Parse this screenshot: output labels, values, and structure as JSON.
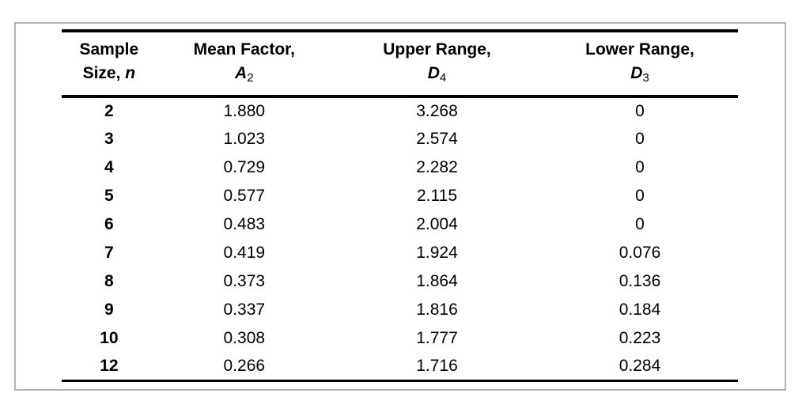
{
  "page": {
    "background_color": "#ffffff",
    "frame_border_color": "#b3b3b3",
    "rule_color": "#000000",
    "text_color": "#000000"
  },
  "table": {
    "headers": [
      {
        "line1": "Sample",
        "pre": "Size, ",
        "var": "n",
        "sub": ""
      },
      {
        "line1": "Mean Factor,",
        "pre": "",
        "var": "A",
        "sub": "2"
      },
      {
        "line1": "Upper Range,",
        "pre": "",
        "var": "D",
        "sub": "4"
      },
      {
        "line1": "Lower Range,",
        "pre": "",
        "var": "D",
        "sub": "3"
      }
    ],
    "rows": [
      [
        "2",
        "1.880",
        "3.268",
        "0"
      ],
      [
        "3",
        "1.023",
        "2.574",
        "0"
      ],
      [
        "4",
        "0.729",
        "2.282",
        "0"
      ],
      [
        "5",
        "0.577",
        "2.115",
        "0"
      ],
      [
        "6",
        "0.483",
        "2.004",
        "0"
      ],
      [
        "7",
        "0.419",
        "1.924",
        "0.076"
      ],
      [
        "8",
        "0.373",
        "1.864",
        "0.136"
      ],
      [
        "9",
        "0.337",
        "1.816",
        "0.184"
      ],
      [
        "10",
        "0.308",
        "1.777",
        "0.223"
      ],
      [
        "12",
        "0.266",
        "1.716",
        "0.284"
      ]
    ]
  }
}
